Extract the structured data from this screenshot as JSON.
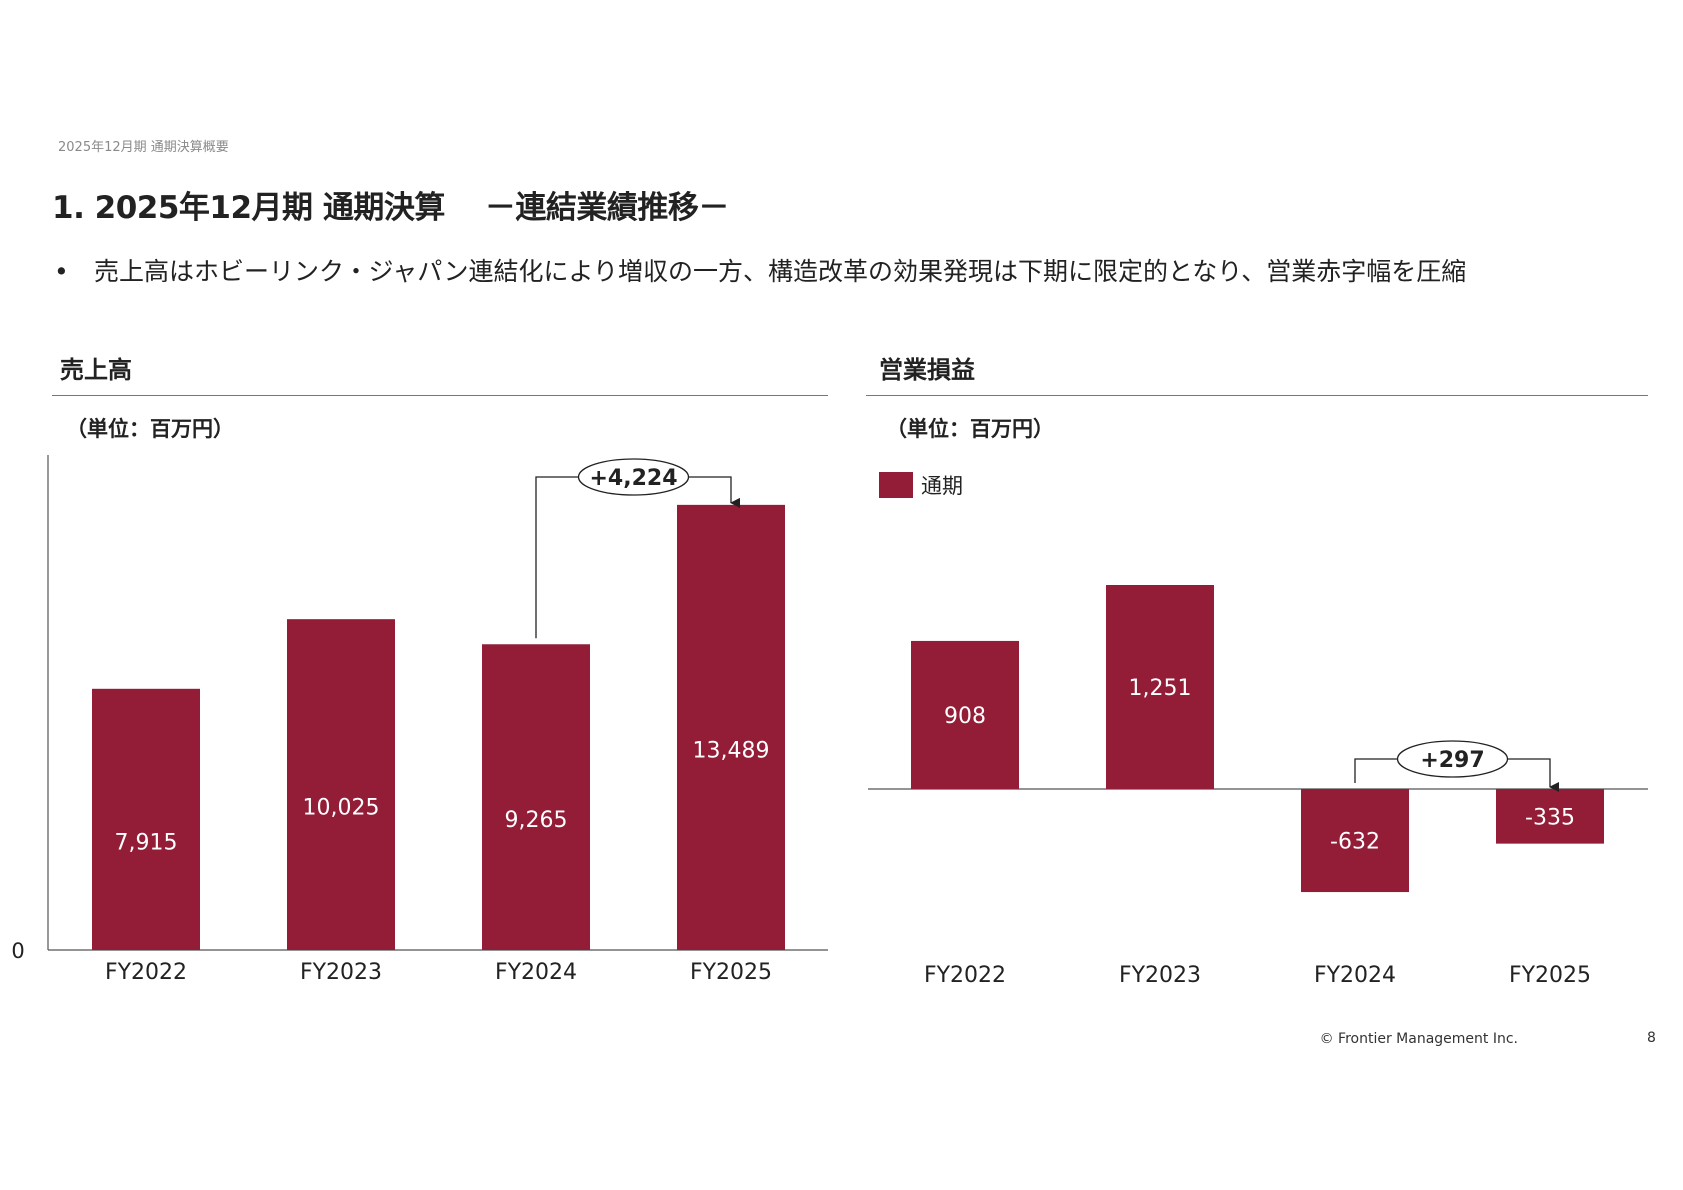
{
  "header": {
    "breadcrumb": "2025年12月期 通期決算概要",
    "title": "1. 2025年12月期 通期決算",
    "subtitle": "－連結業績推移－"
  },
  "bullets": [
    {
      "marker": "•",
      "text": "売上高はホビーリンク・ジャパン連結化により増収の一方、構造改革の効果発現は下期に限定的となり、営業赤字幅を圧縮"
    }
  ],
  "colors": {
    "bar": "#931c37",
    "axis": "#555555",
    "text": "#222222"
  },
  "chart_data": [
    {
      "type": "bar",
      "title": "売上高",
      "unit": "（単位：百万円）",
      "categories": [
        "FY2022",
        "FY2023",
        "FY2024",
        "FY2025"
      ],
      "values": [
        7915,
        10025,
        9265,
        13489
      ],
      "value_labels": [
        "7,915",
        "10,025",
        "9,265",
        "13,489"
      ],
      "ylim": [
        0,
        15000
      ],
      "y_tick_labels": [
        "0"
      ],
      "grid": false,
      "annotation": {
        "from": "FY2024",
        "to": "FY2025",
        "label": "+4,224"
      }
    },
    {
      "type": "bar",
      "title": "営業損益",
      "unit": "（単位：百万円）",
      "legend": [
        "通期"
      ],
      "legend_position": "top-left",
      "categories": [
        "FY2022",
        "FY2023",
        "FY2024",
        "FY2025"
      ],
      "values": [
        908,
        1251,
        -632,
        -335
      ],
      "value_labels": [
        "908",
        "1,251",
        "-632",
        "-335"
      ],
      "ylim": [
        -1000,
        2000
      ],
      "grid": false,
      "annotation": {
        "from": "FY2024",
        "to": "FY2025",
        "label": "+297"
      }
    }
  ],
  "footer": {
    "copyright": "© Frontier Management Inc.",
    "page_number": "8"
  }
}
